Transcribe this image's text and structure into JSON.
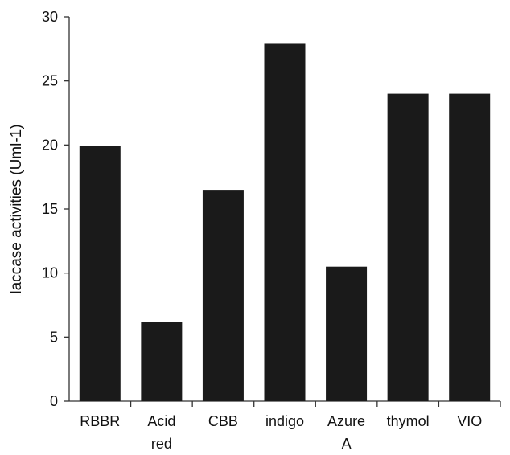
{
  "chart_data": {
    "type": "bar",
    "title": "",
    "xlabel": "",
    "ylabel": "laccase activities (Uml-1)",
    "categories": [
      [
        "RBBR"
      ],
      [
        "Acid",
        "red"
      ],
      [
        "CBB"
      ],
      [
        "indigo"
      ],
      [
        "Azure",
        "A"
      ],
      [
        "thymol"
      ],
      [
        "VIO"
      ]
    ],
    "values": [
      19.9,
      6.2,
      16.5,
      27.9,
      10.5,
      24.0,
      24.0
    ],
    "ylim": [
      0,
      30
    ],
    "yticks": [
      "0",
      "5",
      "10",
      "15",
      "20",
      "25",
      "30"
    ],
    "grid": false,
    "colors": {
      "bar": "#1a1a1a",
      "axis": "#333333"
    }
  }
}
